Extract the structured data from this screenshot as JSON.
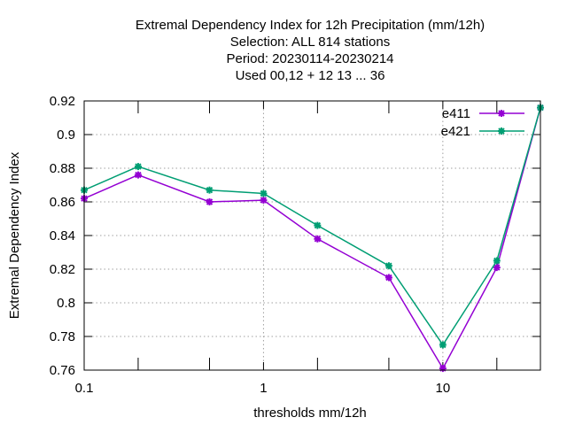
{
  "chart_data": {
    "type": "line",
    "title_lines": [
      "Extremal Dependency Index  for 12h Precipitation (mm/12h)",
      "Selection: ALL     814 stations",
      "Period: 20230114-20230214",
      "Used  00,12  + 12 13 ... 36"
    ],
    "xlabel": "thresholds mm/12h",
    "ylabel": "Extremal Dependency Index",
    "x_scale": "log",
    "xlim": [
      0.1,
      35
    ],
    "ylim": [
      0.76,
      0.92
    ],
    "x_ticks": [
      {
        "value": 0.1,
        "label": "0.1"
      },
      {
        "value": 1,
        "label": "1"
      },
      {
        "value": 10,
        "label": "10"
      }
    ],
    "x_minor_ticks": [
      0.2,
      0.5,
      2,
      5,
      20
    ],
    "y_ticks": [
      "0.76",
      "0.78",
      "0.8",
      "0.82",
      "0.84",
      "0.86",
      "0.88",
      "0.9",
      "0.92"
    ],
    "grid": true,
    "legend_position": "top-right",
    "x": [
      0.1,
      0.2,
      0.5,
      1,
      2,
      5,
      10,
      20,
      35
    ],
    "series": [
      {
        "name": "e411",
        "color": "#9400d3",
        "values": [
          0.862,
          0.876,
          0.86,
          0.861,
          0.838,
          0.815,
          0.761,
          0.821,
          0.916
        ]
      },
      {
        "name": "e421",
        "color": "#009e73",
        "values": [
          0.867,
          0.881,
          0.867,
          0.865,
          0.846,
          0.822,
          0.775,
          0.825,
          0.916
        ]
      }
    ]
  }
}
